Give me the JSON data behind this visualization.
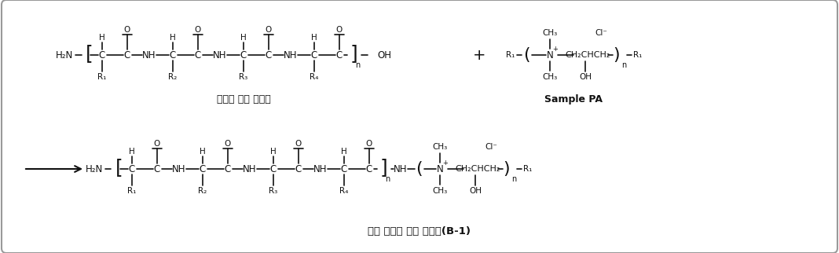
{
  "bg_color": "#ffffff",
  "border_color": "#999999",
  "text_color": "#111111",
  "title1": "단백질 가수 분해물",
  "title2": "변성 단백질 가수 분해물(B-1)",
  "sample_label": "Sample PA",
  "figsize": [
    10.68,
    3.22
  ],
  "dpi": 100
}
